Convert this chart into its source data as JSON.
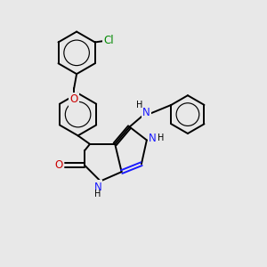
{
  "bg_color": "#e8e8e8",
  "black": "#000000",
  "blue": "#1a1aff",
  "red": "#cc0000",
  "green": "#008800",
  "lw": 1.4,
  "fs": 8.5,
  "xlim": [
    0,
    10
  ],
  "ylim": [
    0,
    10
  ]
}
